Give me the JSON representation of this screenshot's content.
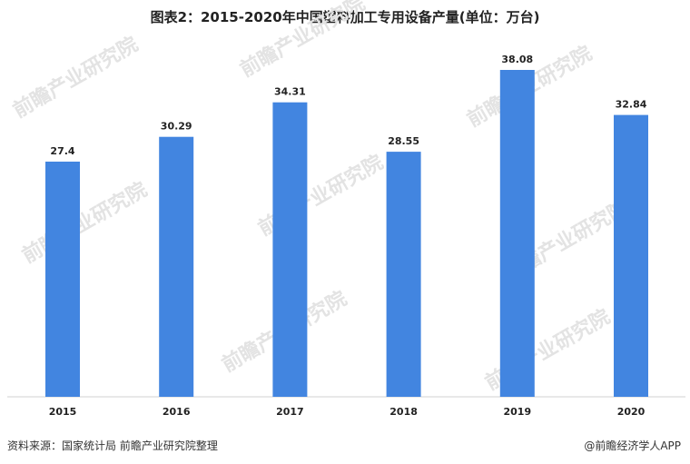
{
  "chart_data": {
    "type": "bar",
    "title": "图表2：2015-2020年中国塑料加工专用设备产量(单位：万台)",
    "categories": [
      "2015",
      "2016",
      "2017",
      "2018",
      "2019",
      "2020"
    ],
    "values": [
      27.4,
      30.29,
      34.31,
      28.55,
      38.08,
      32.84
    ],
    "data_labels": [
      "27.4",
      "30.29",
      "34.31",
      "28.55",
      "38.08",
      "32.84"
    ],
    "xlabel": "",
    "ylabel": "",
    "ylim": [
      0,
      40
    ],
    "grid": false,
    "legend": "none",
    "bar_color": "#4285e0"
  },
  "footer": {
    "source": "资料来源：国家统计局 前瞻产业研究院整理",
    "brand": "@前瞻经济学人APP"
  },
  "watermark": {
    "text": "前瞻产业研究院",
    "color": "#e3e3e3"
  }
}
